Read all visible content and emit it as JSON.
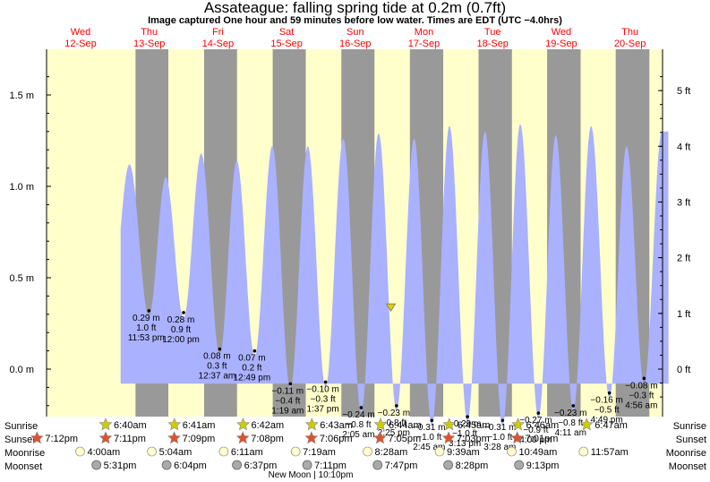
{
  "header": {
    "title": "Assateague: falling  spring tide at 0.2m (0.7ft)",
    "subtitle": "Image captured One hour and 59 minutes before low water. Times are EDT (UTC −4.0hrs)"
  },
  "colors": {
    "day_background": "#ffffcc",
    "night_background": "#999999",
    "tide_fill": "#aab1ff",
    "date_header": "#ff0000",
    "sun_marker": "#cccc00",
    "sunset_marker": "#e0522c",
    "moon_marker": "#ffffcc"
  },
  "chart_data": {
    "type": "area",
    "title": "Assateague: falling  spring tide at 0.2m (0.7ft)",
    "left_axis": {
      "unit": "m",
      "ylim": [
        -0.3,
        1.65
      ],
      "ticks": [
        "1.5 m",
        "1.0 m",
        "0.5 m",
        "0.0 m"
      ],
      "tick_values": [
        1.5,
        1.0,
        0.5,
        0.0
      ]
    },
    "right_axis": {
      "unit": "ft",
      "ticks": [
        "5 ft",
        "4 ft",
        "3 ft",
        "2 ft",
        "1 ft",
        "0 ft"
      ],
      "tick_values": [
        5,
        4,
        3,
        2,
        1,
        0
      ]
    },
    "days": [
      {
        "weekday": "Wed",
        "date": "12-Sep"
      },
      {
        "weekday": "Thu",
        "date": "13-Sep"
      },
      {
        "weekday": "Fri",
        "date": "14-Sep"
      },
      {
        "weekday": "Sat",
        "date": "15-Sep"
      },
      {
        "weekday": "Sun",
        "date": "16-Sep"
      },
      {
        "weekday": "Mon",
        "date": "17-Sep"
      },
      {
        "weekday": "Tue",
        "date": "18-Sep"
      },
      {
        "weekday": "Wed",
        "date": "19-Sep"
      },
      {
        "weekday": "Thu",
        "date": "20-Sep"
      }
    ],
    "nights": [
      {
        "start_day": 0,
        "start": "19:12",
        "end": "06:40"
      },
      {
        "start_day": 1,
        "start": "19:11",
        "end": "06:41"
      },
      {
        "start_day": 2,
        "start": "19:09",
        "end": "06:42"
      },
      {
        "start_day": 3,
        "start": "19:08",
        "end": "06:43"
      },
      {
        "start_day": 4,
        "start": "19:06",
        "end": "06:44"
      },
      {
        "start_day": 5,
        "start": "19:05",
        "end": "06:45"
      },
      {
        "start_day": 6,
        "start": "19:03",
        "end": "06:46"
      },
      {
        "start_day": 7,
        "start": "19:01",
        "end": "06:47"
      }
    ],
    "tide_extremes": [
      {
        "type": "high",
        "day": 0,
        "time": "17:05",
        "m": 1.12
      },
      {
        "type": "low",
        "day": 0,
        "time": "23:53",
        "m": 0.29,
        "labels": [
          "0.29 m",
          "1.0 ft",
          "11:53 pm"
        ]
      },
      {
        "type": "high",
        "day": 1,
        "time": "05:45",
        "m": 1.05
      },
      {
        "type": "low",
        "day": 1,
        "time": "12:00",
        "m": 0.28,
        "labels": [
          "0.28 m",
          "0.9 ft",
          "12:00 pm"
        ]
      },
      {
        "type": "high",
        "day": 1,
        "time": "18:10",
        "m": 1.18
      },
      {
        "type": "low",
        "day": 2,
        "time": "00:37",
        "m": 0.08,
        "labels": [
          "0.08 m",
          "0.3 ft",
          "12:37 am"
        ]
      },
      {
        "type": "high",
        "day": 2,
        "time": "06:35",
        "m": 1.14
      },
      {
        "type": "low",
        "day": 2,
        "time": "12:49",
        "m": 0.07,
        "labels": [
          "0.07 m",
          "0.2 ft",
          "12:49 pm"
        ]
      },
      {
        "type": "high",
        "day": 2,
        "time": "19:00",
        "m": 1.22
      },
      {
        "type": "low",
        "day": 3,
        "time": "01:19",
        "m": -0.11,
        "labels": [
          "−0.11 m",
          "−0.4 ft",
          "1:19 am"
        ]
      },
      {
        "type": "high",
        "day": 3,
        "time": "07:25",
        "m": 1.22
      },
      {
        "type": "low",
        "day": 3,
        "time": "13:37",
        "m": -0.1,
        "labels": [
          "−0.10 m",
          "−0.3 ft",
          "1:37 pm"
        ]
      },
      {
        "type": "high",
        "day": 3,
        "time": "19:50",
        "m": 1.26
      },
      {
        "type": "low",
        "day": 4,
        "time": "02:05",
        "m": -0.24,
        "labels": [
          "−0.24 m",
          "−0.8 ft",
          "2:05 am"
        ]
      },
      {
        "type": "high",
        "day": 4,
        "time": "08:10",
        "m": 1.29
      },
      {
        "type": "low",
        "day": 4,
        "time": "14:25",
        "m": -0.23,
        "labels": [
          "−0.23 m",
          "−0.8 ft",
          "2:25 pm"
        ]
      },
      {
        "type": "high",
        "day": 4,
        "time": "20:35",
        "m": 1.26
      },
      {
        "type": "low",
        "day": 5,
        "time": "02:45",
        "m": -0.31,
        "labels": [
          "−0.31 m",
          "−1.0 ft",
          "2:45 am"
        ]
      },
      {
        "type": "high",
        "day": 5,
        "time": "08:55",
        "m": 1.33
      },
      {
        "type": "low",
        "day": 5,
        "time": "15:13",
        "m": -0.29,
        "labels": [
          "−0.29 m",
          "−1.0 ft",
          "3:13 pm"
        ]
      },
      {
        "type": "high",
        "day": 5,
        "time": "21:20",
        "m": 1.3
      },
      {
        "type": "low",
        "day": 6,
        "time": "03:28",
        "m": -0.31,
        "labels": [
          "−0.31 m",
          "−1.0 ft",
          "3:28 am"
        ]
      },
      {
        "type": "high",
        "day": 6,
        "time": "09:40",
        "m": 1.34
      },
      {
        "type": "low",
        "day": 6,
        "time": "16:00",
        "m": -0.27,
        "labels": [
          "−0.27 m",
          "−0.9 ft",
          "4:00 pm"
        ]
      },
      {
        "type": "high",
        "day": 6,
        "time": "22:05",
        "m": 1.28
      },
      {
        "type": "low",
        "day": 7,
        "time": "04:11",
        "m": -0.23,
        "labels": [
          "−0.23 m",
          "−0.8 ft",
          "4:11 am"
        ]
      },
      {
        "type": "high",
        "day": 7,
        "time": "10:25",
        "m": 1.33
      },
      {
        "type": "low",
        "day": 7,
        "time": "16:49",
        "m": -0.16,
        "labels": [
          "−0.16 m",
          "−0.5 ft",
          "4:49 pm"
        ]
      },
      {
        "type": "high",
        "day": 7,
        "time": "22:50",
        "m": 1.22
      },
      {
        "type": "low",
        "day": 8,
        "time": "04:56",
        "m": -0.08,
        "labels": [
          "−0.08 m",
          "−0.3 ft",
          "4:56 am"
        ]
      },
      {
        "type": "high",
        "day": 8,
        "time": "11:10",
        "m": 1.3
      }
    ],
    "data_range": {
      "start_day": 0,
      "start": "14:00",
      "end_day": 8,
      "end": "13:30"
    },
    "current": {
      "day": 4,
      "time": "12:26",
      "m": 0.2
    },
    "sun_moon": {
      "row_labels": [
        "Sunrise",
        "Sunset",
        "Moonrise",
        "Moonset"
      ],
      "sunrise": [
        {
          "day": 1,
          "time": "06:40",
          "label": "6:40am"
        },
        {
          "day": 2,
          "time": "06:41",
          "label": "6:41am"
        },
        {
          "day": 3,
          "time": "06:42",
          "label": "6:42am"
        },
        {
          "day": 4,
          "time": "06:43",
          "label": "6:43am"
        },
        {
          "day": 5,
          "time": "06:44",
          "label": "6:44am"
        },
        {
          "day": 6,
          "time": "06:45",
          "label": "6:45am"
        },
        {
          "day": 7,
          "time": "06:46",
          "label": "6:46am"
        },
        {
          "day": 8,
          "time": "06:47",
          "label": "6:47am"
        }
      ],
      "sunset": [
        {
          "day": 0,
          "time": "19:12",
          "label": "7:12pm"
        },
        {
          "day": 1,
          "time": "19:11",
          "label": "7:11pm"
        },
        {
          "day": 2,
          "time": "19:09",
          "label": "7:09pm"
        },
        {
          "day": 3,
          "time": "19:08",
          "label": "7:08pm"
        },
        {
          "day": 4,
          "time": "19:06",
          "label": "7:06pm"
        },
        {
          "day": 5,
          "time": "19:05",
          "label": "7:05pm"
        },
        {
          "day": 6,
          "time": "19:03",
          "label": "7:03pm"
        },
        {
          "day": 7,
          "time": "19:01",
          "label": "7:01pm"
        }
      ],
      "moonrise": [
        {
          "day": 1,
          "time": "04:00",
          "label": "4:00am"
        },
        {
          "day": 2,
          "time": "05:04",
          "label": "5:04am"
        },
        {
          "day": 3,
          "time": "06:11",
          "label": "6:11am"
        },
        {
          "day": 4,
          "time": "07:19",
          "label": "7:19am"
        },
        {
          "day": 5,
          "time": "08:28",
          "label": "8:28am"
        },
        {
          "day": 6,
          "time": "09:39",
          "label": "9:39am"
        },
        {
          "day": 7,
          "time": "10:49",
          "label": "10:49am"
        },
        {
          "day": 8,
          "time": "11:57",
          "label": "11:57am"
        }
      ],
      "moonset": [
        {
          "day": 1,
          "time": "17:31",
          "label": "5:31pm"
        },
        {
          "day": 2,
          "time": "18:04",
          "label": "6:04pm"
        },
        {
          "day": 3,
          "time": "18:37",
          "label": "6:37pm"
        },
        {
          "day": 4,
          "time": "19:11",
          "label": "7:11pm"
        },
        {
          "day": 5,
          "time": "19:47",
          "label": "7:47pm"
        },
        {
          "day": 6,
          "time": "20:28",
          "label": "8:28pm"
        },
        {
          "day": 7,
          "time": "21:13",
          "label": "9:13pm"
        }
      ],
      "moon_phase": {
        "day": 4,
        "time": "22:10",
        "label": "New Moon | 10:10pm"
      }
    }
  }
}
